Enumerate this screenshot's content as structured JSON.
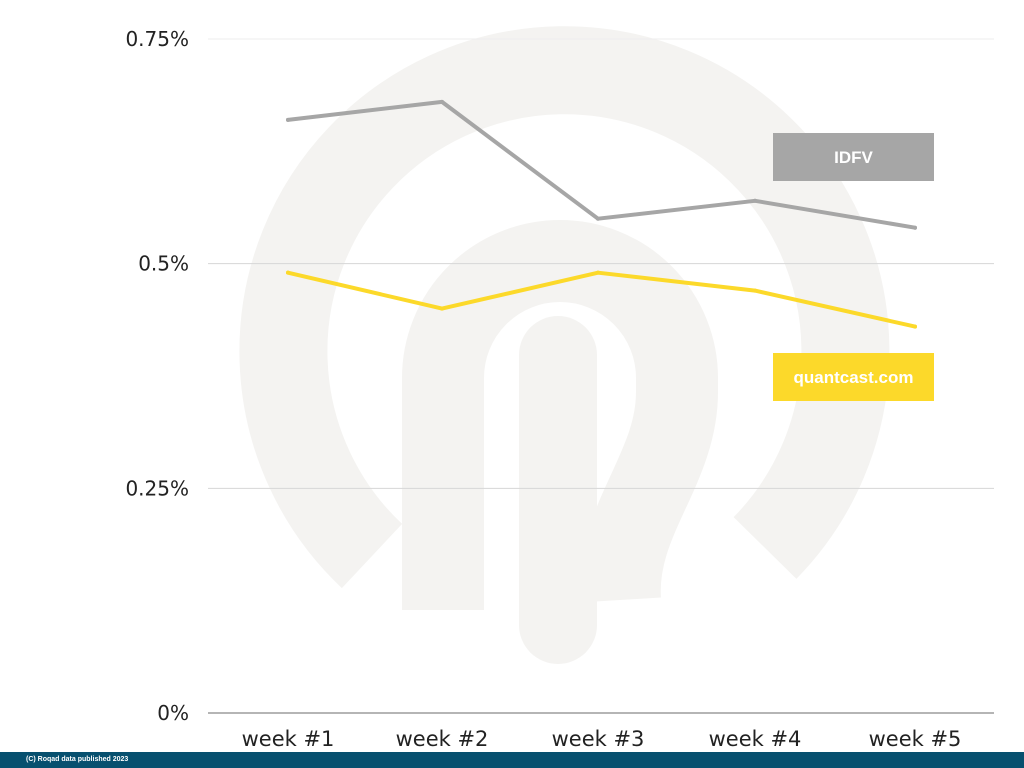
{
  "chart_data": {
    "type": "line",
    "title": "",
    "xlabel": "",
    "ylabel": "",
    "categories": [
      "week #1",
      "week #2",
      "week #3",
      "week #4",
      "week #5"
    ],
    "ylim": [
      0,
      0.75
    ],
    "yticks": [
      0,
      0.25,
      0.5,
      0.75
    ],
    "ytick_labels": [
      "0%",
      "0.25%",
      "0.5%",
      "0.75%"
    ],
    "grid": true,
    "series": [
      {
        "name": "IDFV",
        "color": "#a6a6a6",
        "values": [
          0.66,
          0.68,
          0.55,
          0.57,
          0.54
        ]
      },
      {
        "name": "quantcast.com",
        "color": "#fcd92a",
        "values": [
          0.49,
          0.45,
          0.49,
          0.47,
          0.43
        ]
      }
    ],
    "legend_placement": "right, next to each line"
  },
  "footer": {
    "text": "(C) Roqad data published 2023"
  }
}
